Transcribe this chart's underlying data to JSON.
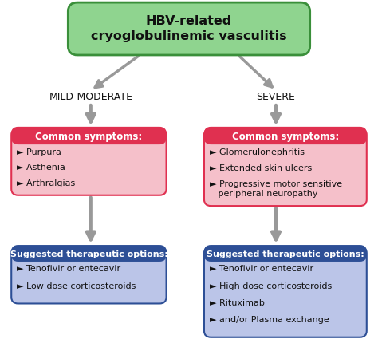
{
  "title": "HBV-related\ncryoglobulinemic vasculitis",
  "title_bg": "#8fd48f",
  "title_border": "#3a8f3a",
  "title_fontsize": 11.5,
  "title_fontstyle": "bold",
  "left_label": "MILD-MODERATE",
  "right_label": "SEVERE",
  "label_fontsize": 9,
  "red_header": "Common symptoms:",
  "red_header_bg": "#e03050",
  "red_body_bg": "#f5c0ca",
  "red_header_fontsize": 8.5,
  "blue_header": "Suggested therapeutic options:",
  "blue_header_bg": "#2d4f96",
  "blue_body_bg": "#bbc5e8",
  "blue_header_fontsize": 8.0,
  "left_symptoms": [
    "► Purpura",
    "► Asthenia",
    "► Arthralgias"
  ],
  "right_symptoms": [
    "► Glomerulonephritis",
    "► Extended skin ulcers",
    "► Progressive motor sensitive\n   peripheral neuropathy"
  ],
  "left_options": [
    "► Tenofivir or entecavir",
    "► Low dose corticosteroids"
  ],
  "right_options": [
    "► Tenofivir or entecavir",
    "► High dose corticosteroids",
    "► Rituximab",
    "► and/or Plasma exchange"
  ],
  "arrow_color": "#999999",
  "text_white": "#ffffff",
  "text_dark": "#111111",
  "body_fontsize": 8.0,
  "background": "#ffffff"
}
